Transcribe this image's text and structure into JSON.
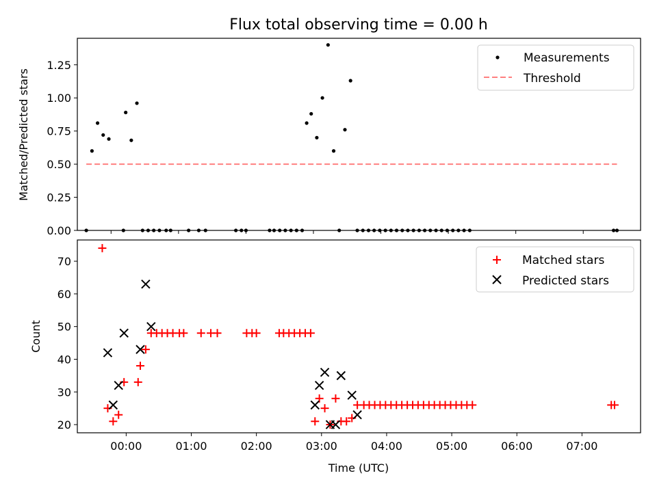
{
  "chart_data": [
    {
      "type": "scatter",
      "title": "Flux total observing time = 0.00 h",
      "ylabel": "Matched/Predicted stars",
      "xlabel": "",
      "xlim": [
        -0.5,
        7.85
      ],
      "ylim": [
        0,
        1.45
      ],
      "yticks": [
        0.0,
        0.25,
        0.5,
        0.75,
        1.0,
        1.25
      ],
      "ytick_labels": [
        "0.00",
        "0.25",
        "0.50",
        "0.75",
        "1.00",
        "1.25"
      ],
      "xticks": [
        0,
        1,
        2,
        3,
        4,
        5,
        6,
        7
      ],
      "legend": "top-right",
      "legend_entries": [
        "Measurements",
        "Threshold"
      ],
      "series": [
        {
          "name": "Measurements",
          "kind": "scatter",
          "marker": "dot",
          "color": "#000000",
          "points": [
            [
              -0.367,
              0
            ],
            [
              -0.283,
              0.6
            ],
            [
              -0.2,
              0.81
            ],
            [
              -0.117,
              0.72
            ],
            [
              -0.033,
              0.69
            ],
            [
              0.183,
              0
            ],
            [
              0.217,
              0.89
            ],
            [
              0.3,
              0.68
            ],
            [
              0.383,
              0.96
            ],
            [
              0.467,
              0
            ],
            [
              0.55,
              0
            ],
            [
              0.633,
              0
            ],
            [
              0.717,
              0
            ],
            [
              0.817,
              0
            ],
            [
              0.883,
              0
            ],
            [
              1.15,
              0
            ],
            [
              1.3,
              0
            ],
            [
              1.4,
              0
            ],
            [
              1.85,
              0
            ],
            [
              1.933,
              0
            ],
            [
              2.0,
              0
            ],
            [
              2.35,
              0
            ],
            [
              2.417,
              0
            ],
            [
              2.5,
              0
            ],
            [
              2.583,
              0
            ],
            [
              2.667,
              0
            ],
            [
              2.75,
              0
            ],
            [
              2.833,
              0
            ],
            [
              2.9,
              0.81
            ],
            [
              2.967,
              0.88
            ],
            [
              3.05,
              0.7
            ],
            [
              3.133,
              1.0
            ],
            [
              3.217,
              1.4
            ],
            [
              3.3,
              0.6
            ],
            [
              3.383,
              0
            ],
            [
              3.467,
              0.76
            ],
            [
              3.55,
              1.13
            ],
            [
              3.65,
              0
            ],
            [
              3.733,
              0
            ],
            [
              3.817,
              0
            ],
            [
              3.9,
              0
            ],
            [
              3.983,
              0
            ],
            [
              4.067,
              0
            ],
            [
              4.15,
              0
            ],
            [
              4.233,
              0
            ],
            [
              4.317,
              0
            ],
            [
              4.4,
              0
            ],
            [
              4.483,
              0
            ],
            [
              4.567,
              0
            ],
            [
              4.65,
              0
            ],
            [
              4.733,
              0
            ],
            [
              4.817,
              0
            ],
            [
              4.9,
              0
            ],
            [
              4.983,
              0
            ],
            [
              5.067,
              0
            ],
            [
              5.15,
              0
            ],
            [
              5.233,
              0
            ],
            [
              5.317,
              0
            ],
            [
              7.45,
              0
            ],
            [
              7.5,
              0
            ]
          ]
        },
        {
          "name": "Threshold",
          "kind": "line",
          "style": "dashed",
          "color": "#ff7f7f",
          "points": [
            [
              -0.367,
              0.5
            ],
            [
              7.5,
              0.5
            ]
          ]
        }
      ]
    },
    {
      "type": "scatter",
      "title": "",
      "ylabel": "Count",
      "xlabel": "Time (UTC)",
      "xlim": [
        -0.75,
        7.9
      ],
      "ylim": [
        17.5,
        76.5
      ],
      "yticks": [
        20,
        30,
        40,
        50,
        60,
        70
      ],
      "ytick_labels": [
        "20",
        "30",
        "40",
        "50",
        "60",
        "70"
      ],
      "xticks": [
        0,
        1,
        2,
        3,
        4,
        5,
        6,
        7
      ],
      "xtick_labels": [
        "00:00",
        "01:00",
        "02:00",
        "03:00",
        "04:00",
        "05:00",
        "06:00",
        "07:00"
      ],
      "legend": "top-right",
      "legend_entries": [
        "Matched stars",
        "Predicted stars"
      ],
      "series": [
        {
          "name": "Matched stars",
          "marker": "plus",
          "color": "#ff0000",
          "points": [
            [
              -0.367,
              74
            ],
            [
              -0.283,
              25
            ],
            [
              -0.2,
              21
            ],
            [
              -0.117,
              23
            ],
            [
              -0.033,
              33
            ],
            [
              0.183,
              33
            ],
            [
              0.217,
              38
            ],
            [
              0.3,
              43
            ],
            [
              0.383,
              48
            ],
            [
              0.467,
              48
            ],
            [
              0.55,
              48
            ],
            [
              0.633,
              48
            ],
            [
              0.717,
              48
            ],
            [
              0.817,
              48
            ],
            [
              0.883,
              48
            ],
            [
              1.15,
              48
            ],
            [
              1.3,
              48
            ],
            [
              1.4,
              48
            ],
            [
              1.85,
              48
            ],
            [
              1.933,
              48
            ],
            [
              2.0,
              48
            ],
            [
              2.35,
              48
            ],
            [
              2.417,
              48
            ],
            [
              2.5,
              48
            ],
            [
              2.583,
              48
            ],
            [
              2.667,
              48
            ],
            [
              2.75,
              48
            ],
            [
              2.833,
              48
            ],
            [
              2.9,
              21
            ],
            [
              2.967,
              28
            ],
            [
              3.05,
              25
            ],
            [
              3.133,
              20
            ],
            [
              3.217,
              28
            ],
            [
              3.3,
              21
            ],
            [
              3.383,
              21
            ],
            [
              3.467,
              22
            ],
            [
              3.55,
              26
            ],
            [
              3.65,
              26
            ],
            [
              3.733,
              26
            ],
            [
              3.817,
              26
            ],
            [
              3.9,
              26
            ],
            [
              3.983,
              26
            ],
            [
              4.067,
              26
            ],
            [
              4.15,
              26
            ],
            [
              4.233,
              26
            ],
            [
              4.317,
              26
            ],
            [
              4.4,
              26
            ],
            [
              4.483,
              26
            ],
            [
              4.567,
              26
            ],
            [
              4.65,
              26
            ],
            [
              4.733,
              26
            ],
            [
              4.817,
              26
            ],
            [
              4.9,
              26
            ],
            [
              4.983,
              26
            ],
            [
              5.067,
              26
            ],
            [
              5.15,
              26
            ],
            [
              5.233,
              26
            ],
            [
              5.317,
              26
            ],
            [
              7.45,
              26
            ],
            [
              7.5,
              26
            ]
          ]
        },
        {
          "name": "Predicted stars",
          "marker": "x",
          "color": "#000000",
          "points": [
            [
              -0.283,
              42
            ],
            [
              -0.2,
              26
            ],
            [
              -0.117,
              32
            ],
            [
              -0.033,
              48
            ],
            [
              0.217,
              43
            ],
            [
              0.3,
              63
            ],
            [
              0.383,
              50
            ],
            [
              2.9,
              26
            ],
            [
              2.967,
              32
            ],
            [
              3.05,
              36
            ],
            [
              3.133,
              20
            ],
            [
              3.217,
              20
            ],
            [
              3.3,
              35
            ],
            [
              3.467,
              29
            ],
            [
              3.55,
              23
            ]
          ]
        }
      ]
    }
  ]
}
